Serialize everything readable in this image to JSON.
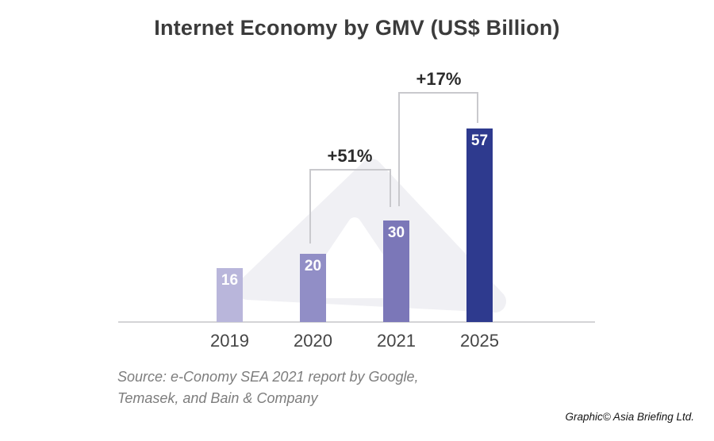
{
  "title": "Internet Economy by GMV (US$ Billion)",
  "chart_data": {
    "type": "bar",
    "title": "Internet Economy by GMV (US$ Billion)",
    "categories": [
      "2019",
      "2020",
      "2021",
      "2025"
    ],
    "values": [
      16,
      20,
      30,
      57
    ],
    "unit": "US$ Billion",
    "bar_colors": [
      "#b9b6db",
      "#918ec6",
      "#7b77b8",
      "#2e3a8e"
    ],
    "value_label_color": "#ffffff",
    "annotations": [
      {
        "label": "+51%",
        "from_category": "2020",
        "to_category": "2021"
      },
      {
        "label": "+17%",
        "from_category": "2021",
        "to_category": "2025"
      }
    ],
    "xlabel": "",
    "ylabel": "",
    "ylim": [
      0,
      57
    ],
    "grid": false,
    "legend": false
  },
  "footer": {
    "source_line1": "Source: e-Conomy SEA 2021 report by Google,",
    "source_line2": "Temasek, and Bain & Company",
    "attribution": "Graphic© Asia Briefing Ltd."
  },
  "colors": {
    "background": "#ffffff",
    "title_text": "#3b3b3b",
    "annotation_text": "#2b2b2b",
    "bracket_line": "#c9c9cd",
    "category_text": "#454545",
    "source_text": "#7d7d7d",
    "attribution_text": "#141414",
    "axis_line": "#d4d4d6",
    "watermark_fill": "#f0f0f4"
  }
}
